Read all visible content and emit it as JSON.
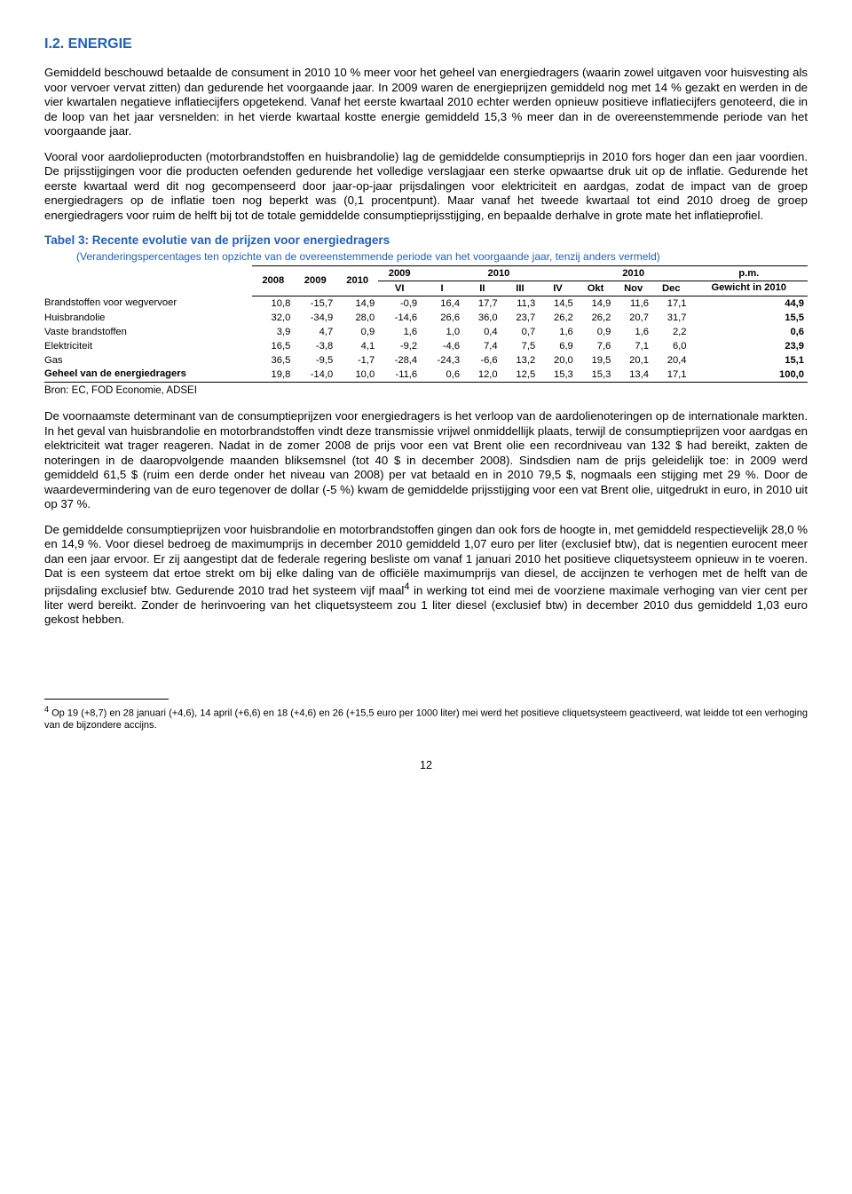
{
  "section_title": "I.2. ENERGIE",
  "para1": "Gemiddeld beschouwd betaalde de consument in 2010 10 % meer voor het geheel van energiedragers (waarin zowel uitgaven voor huisvesting als voor vervoer vervat zitten) dan gedurende het voorgaande jaar. In 2009 waren de energieprijzen gemiddeld nog met 14 % gezakt en werden in de vier kwartalen negatieve inflatiecijfers opgetekend. Vanaf het eerste kwartaal 2010 echter werden opnieuw positieve inflatiecijfers genoteerd, die in de loop van het jaar versnelden: in het vierde kwartaal kostte energie gemiddeld 15,3 % meer dan in de overeenstemmende periode van het voorgaande jaar.",
  "para2": "Vooral voor aardolieproducten (motorbrandstoffen en huisbrandolie) lag de gemiddelde consumptieprijs in 2010 fors hoger dan een jaar voordien. De prijsstijgingen voor die producten oefenden gedurende het volledige verslagjaar een sterke opwaartse druk uit op de inflatie. Gedurende het eerste kwartaal werd dit nog gecompenseerd door jaar-op-jaar prijsdalingen voor elektriciteit en aardgas, zodat de impact van de groep energiedragers op de inflatie toen nog beperkt was (0,1 procentpunt). Maar vanaf het tweede kwartaal tot eind 2010 droeg de groep energiedragers voor ruim de helft bij tot de totale gemiddelde consumptieprijsstijging, en bepaalde derhalve in grote mate het inflatieprofiel.",
  "table_title": "Tabel 3: Recente evolutie van de prijzen voor energiedragers",
  "table_subtitle": "(Veranderingspercentages ten opzichte van de overeenstemmende periode van het voorgaande jaar, tenzij anders vermeld)",
  "table": {
    "head_year_cols": [
      "2008",
      "2009",
      "2010"
    ],
    "span_2009": "2009",
    "span_2010a": "2010",
    "span_2010b": "2010",
    "head_pm": "p.m.",
    "head_gewicht": "Gewicht in 2010",
    "sub_cols": [
      "VI",
      "I",
      "II",
      "III",
      "IV",
      "Okt",
      "Nov",
      "Dec"
    ],
    "rows": [
      {
        "label": "Brandstoffen voor wegvervoer",
        "v": [
          "10,8",
          "-15,7",
          "14,9",
          "-0,9",
          "16,4",
          "17,7",
          "11,3",
          "14,5",
          "14,9",
          "11,6",
          "17,1",
          "44,9"
        ]
      },
      {
        "label": "Huisbrandolie",
        "v": [
          "32,0",
          "-34,9",
          "28,0",
          "-14,6",
          "26,6",
          "36,0",
          "23,7",
          "26,2",
          "26,2",
          "20,7",
          "31,7",
          "15,5"
        ]
      },
      {
        "label": "Vaste brandstoffen",
        "v": [
          "3,9",
          "4,7",
          "0,9",
          "1,6",
          "1,0",
          "0,4",
          "0,7",
          "1,6",
          "0,9",
          "1,6",
          "2,2",
          "0,6"
        ]
      },
      {
        "label": "Elektriciteit",
        "v": [
          "16,5",
          "-3,8",
          "4,1",
          "-9,2",
          "-4,6",
          "7,4",
          "7,5",
          "6,9",
          "7,6",
          "7,1",
          "6,0",
          "23,9"
        ]
      },
      {
        "label": "Gas",
        "v": [
          "36,5",
          "-9,5",
          "-1,7",
          "-28,4",
          "-24,3",
          "-6,6",
          "13,2",
          "20,0",
          "19,5",
          "20,1",
          "20,4",
          "15,1"
        ]
      },
      {
        "label": "Geheel van de energiedragers",
        "v": [
          "19,8",
          "-14,0",
          "10,0",
          "-11,6",
          "0,6",
          "12,0",
          "12,5",
          "15,3",
          "15,3",
          "13,4",
          "17,1",
          "100,0"
        ],
        "bold": true
      }
    ]
  },
  "source": "Bron: EC, FOD Economie, ADSEI",
  "para3": "De voornaamste determinant van de consumptieprijzen voor energiedragers is het verloop van de aardolienoteringen op de internationale markten. In het geval van huisbrandolie en motorbrandstoffen vindt deze transmissie vrijwel onmiddellijk plaats, terwijl de consumptieprijzen voor aardgas en elektriciteit wat trager reageren. Nadat in de zomer 2008 de prijs voor een vat Brent olie een recordniveau van 132 $ had bereikt, zakten de noteringen in de daaropvolgende maanden bliksemsnel (tot 40 $ in december 2008). Sindsdien nam de prijs geleidelijk toe: in 2009 werd gemiddeld 61,5 $ (ruim een derde onder het niveau van 2008) per vat betaald en in 2010 79,5 $, nogmaals een stijging met 29 %. Door de waardevermindering van de euro tegenover de dollar (-5 %) kwam de gemiddelde prijsstijging voor een vat Brent olie, uitgedrukt in euro, in 2010 uit op 37 %.",
  "para4_part1": "De gemiddelde consumptieprijzen voor huisbrandolie en motorbrandstoffen gingen dan ook fors de hoogte in, met gemiddeld respectievelijk 28,0 % en 14,9 %. Voor diesel bedroeg de maximumprijs in december 2010 gemiddeld 1,07 euro per liter (exclusief btw), dat is negentien eurocent meer dan een jaar ervoor. Er zij aangestipt dat de federale regering besliste om vanaf 1 januari 2010 het positieve cliquetsysteem opnieuw in te voeren. Dat is een systeem dat ertoe strekt om bij elke daling van de officiële maximumprijs van diesel, de accijnzen te verhogen met de helft van de prijsdaling exclusief btw. Gedurende 2010 trad het systeem vijf maal",
  "para4_part2": " in werking tot eind mei de voorziene maximale verhoging van vier cent per liter werd bereikt. Zonder de herinvoering van het cliquetsysteem zou 1 liter diesel (exclusief btw) in december 2010 dus gemiddeld 1,03 euro gekost hebben.",
  "footnote_num": "4",
  "footnote_text": " Op 19 (+8,7) en 28 januari (+4,6), 14 april (+6,6) en 18 (+4,6) en 26 (+15,5 euro per 1000 liter) mei werd het positieve cliquetsysteem geactiveerd, wat leidde tot een verhoging van de bijzondere accijns.",
  "page_number": "12"
}
